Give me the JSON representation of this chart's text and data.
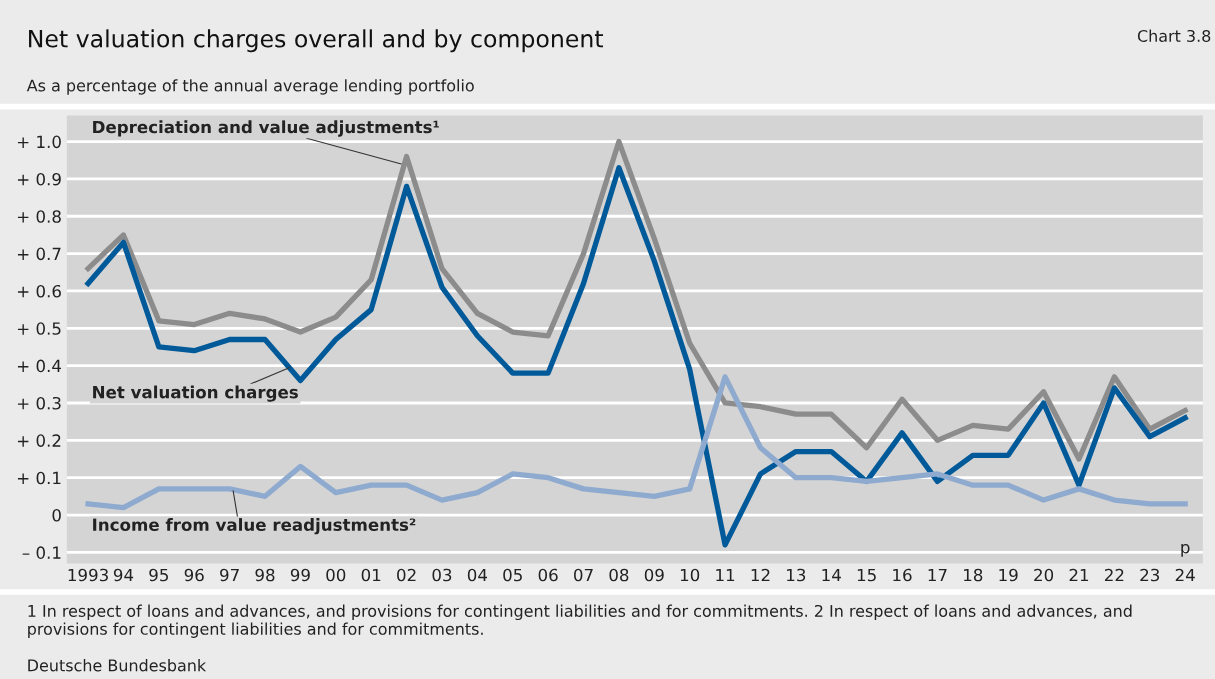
{
  "chart_data": {
    "type": "line",
    "title": "Net valuation charges overall and by component",
    "subtitle": "As a percentage of the annual average lending portfolio",
    "categories": [
      "1993",
      "94",
      "95",
      "96",
      "97",
      "98",
      "99",
      "00",
      "01",
      "02",
      "03",
      "04",
      "05",
      "06",
      "07",
      "08",
      "09",
      "10",
      "11",
      "12",
      "13",
      "14",
      "15",
      "16",
      "17",
      "18",
      "19",
      "20",
      "21",
      "22",
      "23",
      "24"
    ],
    "series": [
      {
        "name": "Depreciation and value adjustments¹",
        "color": "#8c8c8c",
        "values": [
          0.66,
          0.75,
          0.52,
          0.51,
          0.54,
          0.525,
          0.49,
          0.53,
          0.63,
          0.96,
          0.66,
          0.54,
          0.49,
          0.48,
          0.7,
          1.0,
          0.74,
          0.46,
          0.3,
          0.29,
          0.27,
          0.27,
          0.18,
          0.31,
          0.2,
          0.24,
          0.23,
          0.33,
          0.15,
          0.37,
          0.23,
          0.28
        ]
      },
      {
        "name": "Net valuation charges",
        "color": "#005a9a",
        "values": [
          0.62,
          0.73,
          0.45,
          0.44,
          0.47,
          0.47,
          0.36,
          0.47,
          0.55,
          0.88,
          0.61,
          0.48,
          0.38,
          0.38,
          0.62,
          0.93,
          0.68,
          0.39,
          -0.08,
          0.11,
          0.17,
          0.17,
          0.09,
          0.22,
          0.09,
          0.16,
          0.16,
          0.3,
          0.08,
          0.34,
          0.21,
          0.26
        ]
      },
      {
        "name": "Income from value readjustments²",
        "color": "#8faacf",
        "values": [
          0.03,
          0.02,
          0.07,
          0.07,
          0.07,
          0.05,
          0.13,
          0.06,
          0.08,
          0.08,
          0.04,
          0.06,
          0.11,
          0.1,
          0.07,
          0.06,
          0.05,
          0.07,
          0.37,
          0.18,
          0.1,
          0.1,
          0.09,
          0.1,
          0.11,
          0.08,
          0.08,
          0.04,
          0.07,
          0.04,
          0.03,
          0.03
        ]
      }
    ],
    "ylim": [
      -0.13,
      1.07
    ],
    "yticks": [
      {
        "value": -0.1,
        "label": "– 0.1"
      },
      0,
      {
        "value": 0.1,
        "label": "+ 0.1"
      },
      {
        "value": 0.2,
        "label": "+ 0.2"
      },
      {
        "value": 0.3,
        "label": "+ 0.3"
      },
      {
        "value": 0.4,
        "label": "+ 0.4"
      },
      {
        "value": 0.5,
        "label": "+ 0.5"
      },
      {
        "value": 0.6,
        "label": "+ 0.6"
      },
      {
        "value": 0.7,
        "label": "+ 0.7"
      },
      {
        "value": 0.8,
        "label": "+ 0.8"
      },
      {
        "value": 0.9,
        "label": "+ 0.9"
      },
      {
        "value": 1.0,
        "label": "+ 1.0"
      }
    ],
    "grid": "y",
    "legend": false,
    "marker": "none",
    "line_style": "solid",
    "annotations": [
      "p",
      "Chart 3.8",
      "1 In respect of loans and advances, and provisions for contingent liabilities and for commitments. 2 In respect of loans and advances, and provisions for contingent liabilities and for commitments.",
      "Deutsche Bundesbank"
    ]
  }
}
